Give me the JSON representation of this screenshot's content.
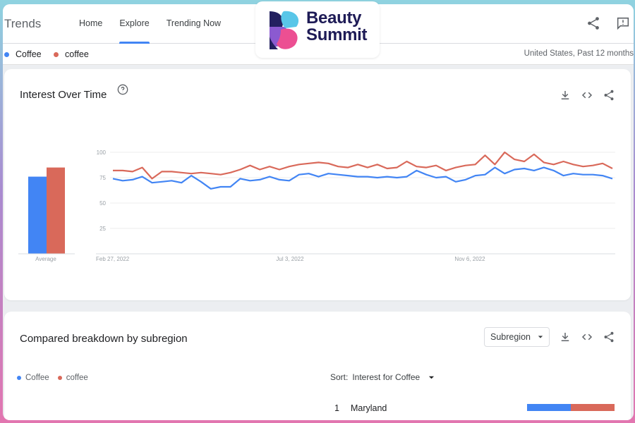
{
  "header": {
    "brand": "Trends",
    "nav": [
      "Home",
      "Explore",
      "Trending Now"
    ],
    "active_nav": "Explore"
  },
  "logo": {
    "line1": "Beauty",
    "line2": "Summit"
  },
  "terms": [
    {
      "label": "Coffee",
      "color": "#4285f4"
    },
    {
      "label": "coffee",
      "color": "#d9695a"
    }
  ],
  "region": "United States, Past 12 months",
  "interest_card": {
    "title": "Interest Over Time",
    "average_label": "Average"
  },
  "chart_data": {
    "type": "line",
    "x_ticks": [
      "Feb 27, 2022",
      "Jul 3, 2022",
      "Nov 6, 2022"
    ],
    "y_ticks": [
      25,
      50,
      75,
      100
    ],
    "ylim": [
      0,
      100
    ],
    "averages": [
      {
        "name": "Coffee",
        "value": 76
      },
      {
        "name": "coffee",
        "value": 85
      }
    ],
    "series": [
      {
        "name": "Coffee",
        "color": "#4285f4",
        "values": [
          74,
          72,
          73,
          76,
          70,
          71,
          72,
          70,
          77,
          71,
          64,
          66,
          66,
          74,
          72,
          73,
          76,
          73,
          72,
          78,
          79,
          76,
          79,
          78,
          77,
          76,
          76,
          75,
          76,
          75,
          76,
          82,
          78,
          75,
          76,
          71,
          73,
          77,
          78,
          85,
          79,
          83,
          84,
          82,
          85,
          82,
          77,
          79,
          78,
          78,
          77,
          74
        ]
      },
      {
        "name": "coffee",
        "color": "#d9695a",
        "values": [
          82,
          82,
          81,
          85,
          74,
          81,
          81,
          80,
          79,
          80,
          79,
          78,
          80,
          83,
          87,
          83,
          86,
          83,
          86,
          88,
          89,
          90,
          89,
          86,
          85,
          88,
          85,
          88,
          84,
          85,
          91,
          86,
          85,
          87,
          82,
          85,
          87,
          88,
          97,
          88,
          100,
          93,
          91,
          98,
          90,
          88,
          91,
          88,
          86,
          87,
          89,
          84
        ]
      }
    ]
  },
  "breakdown_card": {
    "title": "Compared breakdown by subregion",
    "dropdown": "Subregion",
    "sort_label": "Sort:",
    "sort_value": "Interest for Coffee",
    "rows": [
      {
        "rank": "1",
        "name": "Maryland",
        "share_a": 0.5,
        "share_b": 0.5
      }
    ]
  }
}
